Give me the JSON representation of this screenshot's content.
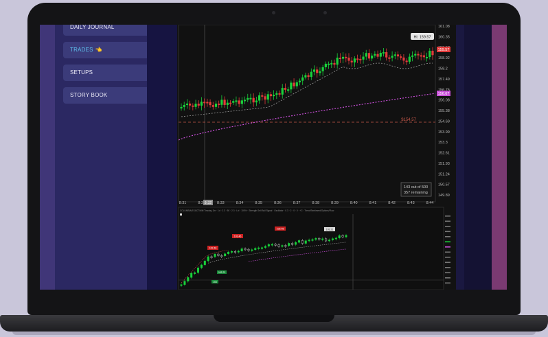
{
  "sidebar": {
    "items": [
      {
        "label": "DAILY JOURNAL"
      },
      {
        "label": "TRADES",
        "emoji": "👈"
      },
      {
        "label": "SETUPS"
      },
      {
        "label": "STORY BOOK"
      }
    ],
    "active_color": "#5fc3f0"
  },
  "main_chart": {
    "price_labels": [
      "161.08",
      "160.35",
      "159.57",
      "158.92",
      "158.2",
      "157.49",
      "156.75",
      "156.08",
      "155.38",
      "154.69",
      "153.99",
      "153.3",
      "152.61",
      "151.93",
      "151.24",
      "150.57",
      "149.89"
    ],
    "hi_label": "Hi: 159.57",
    "current_price": "159.57",
    "ma_price": "156.67",
    "level_label": "$154.57",
    "time_labels": [
      "8:31",
      "8:32",
      "8:33",
      "8:34",
      "8:35",
      "8:36",
      "8:37",
      "8:38",
      "8:39",
      "8:40",
      "8:41",
      "8:42",
      "8:43",
      "8:44"
    ],
    "cursor_time": "8:32",
    "count_line1": "143 out of 500",
    "count_line2": "357 remaining",
    "colors": {
      "up": "#19d13b",
      "down": "#e23a3a",
      "ma_slow": "#c84fd8",
      "level": "#c8584a"
    }
  },
  "lower_chart": {
    "header_text": "COLUMBIA/EXACT/MM Tinsday, 2m · 1d · 2.3 · 50 · 2.3 · Lvl · 100% · Strength Sell Bull Signal · Oscillator · 0.3 · 2 · 0 · 0 · +C · Trend/Sentiment/Options/Flow",
    "callouts": [
      "102.46",
      "103.46",
      "103.48"
    ],
    "green_tags": [
      "103.72",
      "103"
    ],
    "white_tag": "103.21"
  }
}
